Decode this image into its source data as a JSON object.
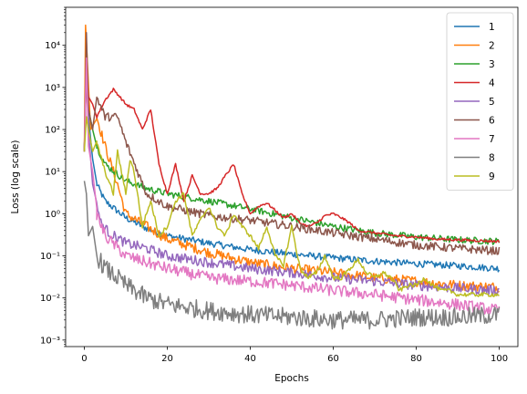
{
  "chart_data": {
    "type": "line",
    "title": "",
    "xlabel": "Epochs",
    "ylabel": "Loss (log scale)",
    "yscale": "log",
    "xlim": [
      -4.5,
      104.5
    ],
    "ylim": [
      0.0007,
      80000
    ],
    "xticks": [
      0,
      20,
      40,
      60,
      80,
      100
    ],
    "xtick_labels": [
      "0",
      "20",
      "40",
      "60",
      "80",
      "100"
    ],
    "yticks": [
      0.001,
      0.01,
      0.1,
      1,
      10,
      100,
      1000,
      10000
    ],
    "ytick_labels": [
      "10⁻³",
      "10⁻²",
      "10⁻¹",
      "10⁰",
      "10¹",
      "10²",
      "10³",
      "10⁴"
    ],
    "grid": false,
    "legend_position": "top-right",
    "series": [
      {
        "name": "1",
        "color": "#1f77b4",
        "values": [
          [
            0,
            30
          ],
          [
            0.5,
            3000
          ],
          [
            1,
            200
          ],
          [
            2,
            20
          ],
          [
            3,
            5
          ],
          [
            5,
            2
          ],
          [
            10,
            0.8
          ],
          [
            15,
            0.45
          ],
          [
            20,
            0.3
          ],
          [
            30,
            0.2
          ],
          [
            40,
            0.14
          ],
          [
            50,
            0.11
          ],
          [
            60,
            0.09
          ],
          [
            70,
            0.075
          ],
          [
            80,
            0.065
          ],
          [
            90,
            0.058
          ],
          [
            100,
            0.05
          ]
        ]
      },
      {
        "name": "2",
        "color": "#ff7f0e",
        "values": [
          [
            0,
            30
          ],
          [
            0.3,
            30000
          ],
          [
            0.8,
            3000
          ],
          [
            1.5,
            100
          ],
          [
            3,
            200
          ],
          [
            5,
            40
          ],
          [
            8,
            5
          ],
          [
            10,
            1
          ],
          [
            15,
            0.5
          ],
          [
            20,
            0.25
          ],
          [
            30,
            0.12
          ],
          [
            40,
            0.07
          ],
          [
            50,
            0.05
          ],
          [
            60,
            0.04
          ],
          [
            70,
            0.03
          ],
          [
            80,
            0.025
          ],
          [
            90,
            0.02
          ],
          [
            100,
            0.018
          ]
        ]
      },
      {
        "name": "3",
        "color": "#2ca02c",
        "values": [
          [
            0,
            30
          ],
          [
            0.5,
            3000
          ],
          [
            1,
            300
          ],
          [
            2,
            100
          ],
          [
            3,
            40
          ],
          [
            5,
            15
          ],
          [
            10,
            6
          ],
          [
            15,
            4
          ],
          [
            20,
            3
          ],
          [
            30,
            2
          ],
          [
            40,
            1.3
          ],
          [
            50,
            0.8
          ],
          [
            60,
            0.5
          ],
          [
            70,
            0.35
          ],
          [
            80,
            0.28
          ],
          [
            90,
            0.24
          ],
          [
            100,
            0.22
          ]
        ]
      },
      {
        "name": "4",
        "color": "#d62728",
        "values": [
          [
            0,
            30
          ],
          [
            0.5,
            2000
          ],
          [
            1,
            600
          ],
          [
            2,
            400
          ],
          [
            3,
            200
          ],
          [
            5,
            500
          ],
          [
            7,
            900
          ],
          [
            8,
            700
          ],
          [
            10,
            400
          ],
          [
            12,
            300
          ],
          [
            14,
            100
          ],
          [
            16,
            300
          ],
          [
            18,
            15
          ],
          [
            20,
            3
          ],
          [
            22,
            15
          ],
          [
            24,
            2
          ],
          [
            26,
            8
          ],
          [
            28,
            3
          ],
          [
            30,
            3
          ],
          [
            32,
            4
          ],
          [
            34,
            8
          ],
          [
            36,
            15
          ],
          [
            38,
            3
          ],
          [
            40,
            1
          ],
          [
            42,
            1.5
          ],
          [
            44,
            1.8
          ],
          [
            46,
            1.2
          ],
          [
            48,
            0.8
          ],
          [
            50,
            1
          ],
          [
            52,
            0.6
          ],
          [
            54,
            0.5
          ],
          [
            56,
            0.6
          ],
          [
            58,
            0.9
          ],
          [
            60,
            1
          ],
          [
            62,
            0.8
          ],
          [
            64,
            0.6
          ],
          [
            66,
            0.4
          ],
          [
            70,
            0.35
          ],
          [
            75,
            0.3
          ],
          [
            80,
            0.28
          ],
          [
            85,
            0.25
          ],
          [
            90,
            0.24
          ],
          [
            95,
            0.23
          ],
          [
            100,
            0.22
          ]
        ]
      },
      {
        "name": "5",
        "color": "#9467bd",
        "values": [
          [
            0,
            30
          ],
          [
            0.5,
            3000
          ],
          [
            1,
            100
          ],
          [
            2,
            5
          ],
          [
            4,
            0.6
          ],
          [
            6,
            0.35
          ],
          [
            10,
            0.2
          ],
          [
            15,
            0.15
          ],
          [
            20,
            0.1
          ],
          [
            30,
            0.07
          ],
          [
            40,
            0.05
          ],
          [
            50,
            0.04
          ],
          [
            60,
            0.03
          ],
          [
            70,
            0.025
          ],
          [
            80,
            0.02
          ],
          [
            90,
            0.017
          ],
          [
            100,
            0.015
          ]
        ]
      },
      {
        "name": "6",
        "color": "#8c564b",
        "values": [
          [
            0,
            30
          ],
          [
            0.5,
            20000
          ],
          [
            1,
            300
          ],
          [
            2,
            100
          ],
          [
            3,
            600
          ],
          [
            5,
            200
          ],
          [
            8,
            200
          ],
          [
            10,
            50
          ],
          [
            15,
            3
          ],
          [
            20,
            1.5
          ],
          [
            30,
            0.9
          ],
          [
            40,
            0.7
          ],
          [
            50,
            0.5
          ],
          [
            60,
            0.35
          ],
          [
            70,
            0.25
          ],
          [
            80,
            0.18
          ],
          [
            90,
            0.15
          ],
          [
            100,
            0.13
          ]
        ]
      },
      {
        "name": "7",
        "color": "#e377c2",
        "values": [
          [
            0,
            30
          ],
          [
            0.5,
            5000
          ],
          [
            1,
            40
          ],
          [
            2,
            10
          ],
          [
            3,
            1
          ],
          [
            5,
            0.3
          ],
          [
            10,
            0.1
          ],
          [
            15,
            0.07
          ],
          [
            20,
            0.05
          ],
          [
            30,
            0.03
          ],
          [
            40,
            0.025
          ],
          [
            50,
            0.02
          ],
          [
            60,
            0.015
          ],
          [
            70,
            0.012
          ],
          [
            80,
            0.009
          ],
          [
            90,
            0.007
          ],
          [
            100,
            0.005
          ]
        ]
      },
      {
        "name": "8",
        "color": "#7f7f7f",
        "values": [
          [
            0,
            6
          ],
          [
            0.5,
            3
          ],
          [
            1,
            0.3
          ],
          [
            2,
            0.5
          ],
          [
            3,
            0.1
          ],
          [
            5,
            0.05
          ],
          [
            8,
            0.03
          ],
          [
            10,
            0.02
          ],
          [
            15,
            0.01
          ],
          [
            20,
            0.007
          ],
          [
            30,
            0.005
          ],
          [
            40,
            0.004
          ],
          [
            50,
            0.0035
          ],
          [
            60,
            0.003
          ],
          [
            70,
            0.003
          ],
          [
            80,
            0.0035
          ],
          [
            90,
            0.0035
          ],
          [
            100,
            0.004
          ]
        ]
      },
      {
        "name": "9",
        "color": "#bcbd22",
        "values": [
          [
            0,
            30
          ],
          [
            0.5,
            200
          ],
          [
            1,
            100
          ],
          [
            2,
            30
          ],
          [
            3,
            50
          ],
          [
            5,
            10
          ],
          [
            7,
            3
          ],
          [
            8,
            30
          ],
          [
            10,
            3
          ],
          [
            11,
            20
          ],
          [
            12,
            10
          ],
          [
            14,
            0.5
          ],
          [
            16,
            2
          ],
          [
            18,
            0.3
          ],
          [
            20,
            0.5
          ],
          [
            22,
            2
          ],
          [
            24,
            3
          ],
          [
            26,
            0.3
          ],
          [
            28,
            0.7
          ],
          [
            30,
            1.5
          ],
          [
            32,
            0.5
          ],
          [
            34,
            0.3
          ],
          [
            36,
            1
          ],
          [
            38,
            0.5
          ],
          [
            40,
            0.3
          ],
          [
            42,
            0.15
          ],
          [
            44,
            0.5
          ],
          [
            46,
            0.1
          ],
          [
            48,
            0.06
          ],
          [
            50,
            0.5
          ],
          [
            52,
            0.05
          ],
          [
            54,
            0.03
          ],
          [
            56,
            0.04
          ],
          [
            58,
            0.1
          ],
          [
            60,
            0.03
          ],
          [
            62,
            0.03
          ],
          [
            64,
            0.05
          ],
          [
            66,
            0.08
          ],
          [
            68,
            0.04
          ],
          [
            70,
            0.03
          ],
          [
            72,
            0.04
          ],
          [
            74,
            0.03
          ],
          [
            76,
            0.015
          ],
          [
            78,
            0.02
          ],
          [
            80,
            0.02
          ],
          [
            82,
            0.03
          ],
          [
            84,
            0.02
          ],
          [
            86,
            0.015
          ],
          [
            88,
            0.015
          ],
          [
            90,
            0.012
          ],
          [
            92,
            0.012
          ],
          [
            95,
            0.012
          ],
          [
            100,
            0.012
          ]
        ]
      }
    ]
  }
}
